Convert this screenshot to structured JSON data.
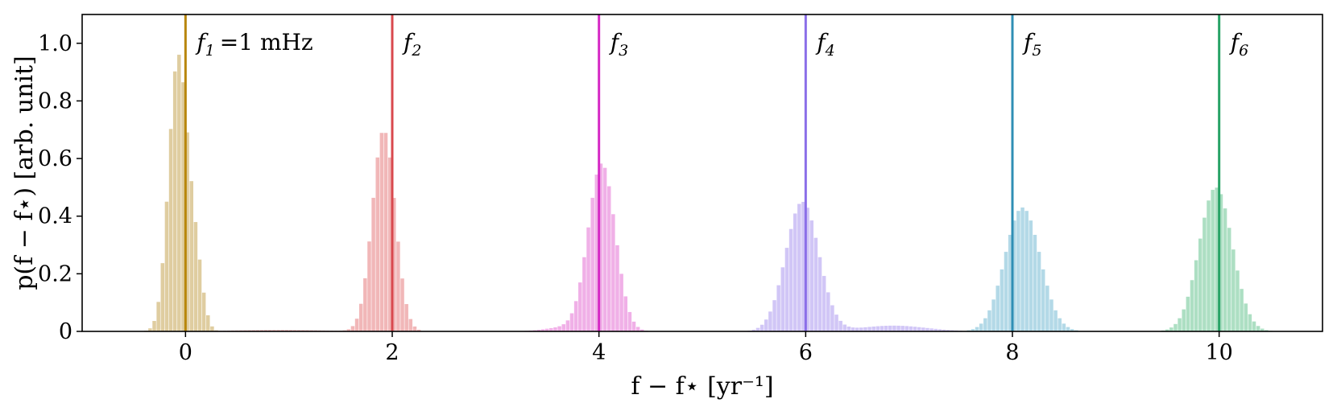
{
  "chart_data": {
    "type": "histogram",
    "xlabel": "f − f⋆ [yr⁻¹]",
    "ylabel": "p(f − f⋆) [arb. unit]",
    "xlim": [
      -1.0,
      11.0
    ],
    "ylim": [
      0,
      1.1
    ],
    "xticks": [
      0,
      2,
      4,
      6,
      8,
      10
    ],
    "xtick_labels": [
      "0",
      "2",
      "4",
      "6",
      "8",
      "10"
    ],
    "yticks": [
      0,
      0.2,
      0.4,
      0.6,
      0.8,
      1.0
    ],
    "ytick_labels": [
      "0",
      "0.2",
      "0.4",
      "0.6",
      "0.8",
      "1.0"
    ],
    "grid": false,
    "bin_width": 0.04,
    "series": [
      {
        "label_main": "f",
        "label_sub": "1",
        "label_suffix": "=1 mHz",
        "line_x": 0,
        "line_color": "#b8860b",
        "fill_color": "#d9c48f",
        "components": [
          {
            "mean": -0.07,
            "sigma": 0.09,
            "peak": 0.95
          },
          {
            "mean": 0.1,
            "sigma": 0.07,
            "peak": 0.22
          }
        ]
      },
      {
        "label_main": "f",
        "label_sub": "2",
        "label_suffix": "",
        "line_x": 2,
        "line_color": "#d9494e",
        "fill_color": "#eeaaab",
        "components": [
          {
            "mean": 1.92,
            "sigma": 0.11,
            "peak": 0.7
          },
          {
            "mean": 0.9,
            "sigma": 0.45,
            "peak": 0.005
          }
        ]
      },
      {
        "label_main": "f",
        "label_sub": "3",
        "label_suffix": "",
        "line_x": 4,
        "line_color": "#d62ac5",
        "fill_color": "#eda2e3",
        "components": [
          {
            "mean": 4.03,
            "sigma": 0.13,
            "peak": 0.58
          },
          {
            "mean": 3.7,
            "sigma": 0.2,
            "peak": 0.015
          }
        ]
      },
      {
        "label_main": "f",
        "label_sub": "4",
        "label_suffix": "",
        "line_x": 6,
        "line_color": "#8b6ee8",
        "fill_color": "#c9bcf5",
        "components": [
          {
            "mean": 5.97,
            "sigma": 0.16,
            "peak": 0.45
          },
          {
            "mean": 6.85,
            "sigma": 0.32,
            "peak": 0.02
          }
        ]
      },
      {
        "label_main": "f",
        "label_sub": "5",
        "label_suffix": "",
        "line_x": 8,
        "line_color": "#2f8fb5",
        "fill_color": "#a6d2e3",
        "components": [
          {
            "mean": 8.1,
            "sigma": 0.17,
            "peak": 0.43
          }
        ]
      },
      {
        "label_main": "f",
        "label_sub": "6",
        "label_suffix": "",
        "line_x": 10,
        "line_color": "#27a366",
        "fill_color": "#9fd9b9",
        "components": [
          {
            "mean": 9.97,
            "sigma": 0.16,
            "peak": 0.5
          }
        ]
      }
    ]
  }
}
